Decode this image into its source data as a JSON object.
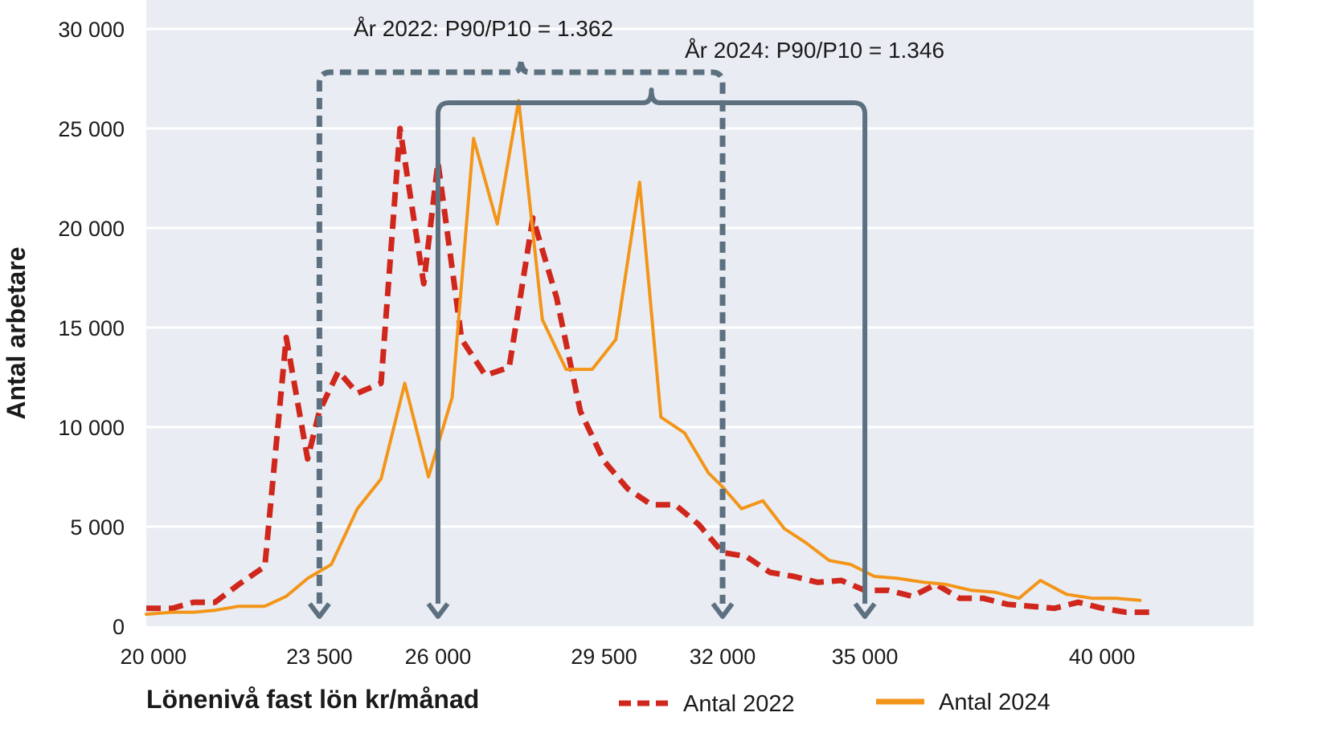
{
  "chart_data": {
    "type": "line",
    "xlabel": "Lönenivå fast lön kr/månad",
    "ylabel": "Antal arbetare",
    "ylim": [
      0,
      30000
    ],
    "xlim": [
      19850,
      43200
    ],
    "grid": true,
    "legend_position": "bottom",
    "yticks": [
      {
        "value": 0,
        "label": "0"
      },
      {
        "value": 5000,
        "label": "5 000"
      },
      {
        "value": 10000,
        "label": "10 000"
      },
      {
        "value": 15000,
        "label": "15 000"
      },
      {
        "value": 20000,
        "label": "20 000"
      },
      {
        "value": 25000,
        "label": "25 000"
      },
      {
        "value": 30000,
        "label": "30 000"
      }
    ],
    "xticks": [
      {
        "value": 20000,
        "label": "20 000"
      },
      {
        "value": 23500,
        "label": "23 500"
      },
      {
        "value": 26000,
        "label": "26 000"
      },
      {
        "value": 29500,
        "label": "29 500"
      },
      {
        "value": 32000,
        "label": "32 000"
      },
      {
        "value": 35000,
        "label": "35 000"
      },
      {
        "value": 40000,
        "label": "40 000"
      }
    ],
    "series": [
      {
        "name": "Antal 2022",
        "style": "dashed",
        "color": "#d0271d",
        "x": [
          19850,
          20400,
          20850,
          21300,
          21800,
          22350,
          22800,
          23250,
          23500,
          23900,
          24300,
          24800,
          25200,
          25700,
          26000,
          26500,
          27000,
          27500,
          28000,
          28500,
          29000,
          29500,
          30000,
          30500,
          31000,
          31500,
          32000,
          32500,
          33000,
          33500,
          34000,
          34500,
          35000,
          35500,
          36000,
          36500,
          37000,
          37500,
          38000,
          38500,
          39000,
          39500,
          40000,
          40500,
          41000
        ],
        "values": [
          900,
          900,
          1200,
          1200,
          2100,
          3000,
          14500,
          8400,
          10800,
          12800,
          11700,
          12200,
          25000,
          17200,
          23300,
          14400,
          12600,
          13000,
          20500,
          16500,
          10800,
          8300,
          6900,
          6100,
          6100,
          5100,
          3700,
          3500,
          2700,
          2500,
          2200,
          2300,
          1800,
          1800,
          1500,
          2100,
          1400,
          1400,
          1100,
          1000,
          900,
          1200,
          900,
          700,
          700
        ]
      },
      {
        "name": "Antal 2024",
        "style": "solid",
        "color": "#f39519",
        "x": [
          19850,
          20400,
          20850,
          21300,
          21800,
          22350,
          22800,
          23250,
          23750,
          24300,
          24800,
          25300,
          25800,
          26300,
          26750,
          27250,
          27700,
          28200,
          28700,
          29250,
          29750,
          30250,
          30700,
          31200,
          31700,
          32000,
          32400,
          32850,
          33300,
          33750,
          34250,
          34700,
          35200,
          35700,
          36250,
          36700,
          37250,
          37750,
          38250,
          38700,
          39250,
          39800,
          40300,
          40800
        ],
        "values": [
          600,
          700,
          700,
          800,
          1000,
          1000,
          1500,
          2400,
          3100,
          5900,
          7400,
          12200,
          7500,
          11500,
          24500,
          20200,
          26400,
          15400,
          12900,
          12900,
          14400,
          22300,
          10500,
          9700,
          7700,
          7000,
          5900,
          6300,
          4900,
          4200,
          3300,
          3100,
          2500,
          2400,
          2200,
          2100,
          1800,
          1700,
          1400,
          2300,
          1600,
          1400,
          1400,
          1300
        ]
      }
    ],
    "annotations": [
      {
        "id": "p2022",
        "text": "År 2022: P90/P10 = 1.362",
        "style": "dashed",
        "p10": 23500,
        "p90": 32000
      },
      {
        "id": "p2024",
        "text": "År 2024: P90/P10 = 1.346",
        "style": "solid",
        "p10": 26000,
        "p90": 35000
      }
    ]
  }
}
